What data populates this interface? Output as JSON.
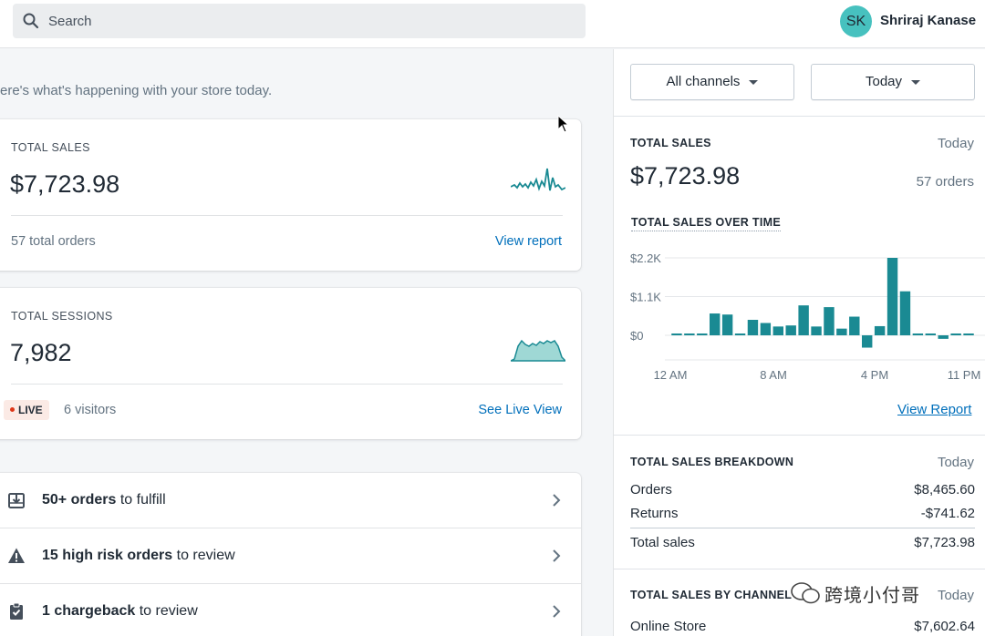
{
  "search": {
    "label": "Search"
  },
  "user": {
    "initials": "SK",
    "name": "Shriraj Kanase"
  },
  "greeting": "ere's what's happening with your store today.",
  "sales_card": {
    "label": "TOTAL SALES",
    "value": "$7,723.98",
    "orders": "57 total orders",
    "link": "View report"
  },
  "sessions_card": {
    "label": "TOTAL SESSIONS",
    "value": "7,982",
    "live": "LIVE",
    "visitors": "6 visitors",
    "link": "See Live View"
  },
  "tasks": [
    {
      "bold": "50+ orders",
      "rest": " to fulfill",
      "icon": "fulfill-icon"
    },
    {
      "bold": "15 high risk orders",
      "rest": " to review",
      "icon": "warning-icon"
    },
    {
      "bold": "1 chargeback",
      "rest": " to review",
      "icon": "clipboard-icon"
    }
  ],
  "filters": {
    "channels": "All channels",
    "period": "Today"
  },
  "right_sales": {
    "label": "TOTAL SALES",
    "period": "Today",
    "value": "$7,723.98",
    "orders": "57 orders"
  },
  "over_time": {
    "label": "TOTAL SALES OVER TIME",
    "link": "View Report"
  },
  "chart_data": {
    "type": "bar",
    "title": "TOTAL SALES OVER TIME",
    "yticks": [
      "$2.2K",
      "$1.1K",
      "$0"
    ],
    "xticks": [
      "12 AM",
      "8 AM",
      "4 PM",
      "11 PM"
    ],
    "ylim": [
      -600,
      2200
    ],
    "values": [
      50,
      50,
      50,
      620,
      590,
      50,
      440,
      350,
      250,
      280,
      850,
      250,
      800,
      190,
      530,
      -350,
      260,
      2200,
      1250,
      50,
      50,
      -100,
      50,
      50
    ],
    "color": "#1a8a93"
  },
  "breakdown": {
    "label": "TOTAL SALES BREAKDOWN",
    "period": "Today",
    "rows": [
      {
        "name": "Orders",
        "amount": "$8,465.60"
      },
      {
        "name": "Returns",
        "amount": "-$741.62"
      },
      {
        "name": "Total sales",
        "amount": "$7,723.98"
      }
    ]
  },
  "by_channel": {
    "label": "TOTAL SALES BY CHANNEL",
    "period": "Today",
    "rows": [
      {
        "name": "Online Store",
        "amount": "$7,602.64"
      }
    ]
  },
  "watermark": "跨境小付哥"
}
